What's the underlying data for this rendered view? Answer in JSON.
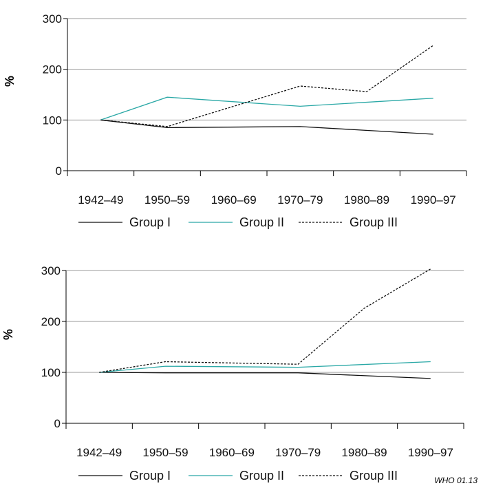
{
  "chart_data": [
    {
      "type": "line",
      "ylabel": "%",
      "ylim": [
        0,
        300
      ],
      "yticks": [
        0,
        100,
        200,
        300
      ],
      "grid": true,
      "legend": "bottom",
      "categories": [
        "1942–49",
        "1950–59",
        "1960–69",
        "1970–79",
        "1980–89",
        "1990–97"
      ],
      "series": [
        {
          "name": "Group I",
          "color": "#111111",
          "style": "solid",
          "x": [
            0.5,
            1.5,
            3.5,
            5.5
          ],
          "values": [
            100,
            85,
            87,
            72
          ]
        },
        {
          "name": "Group II",
          "color": "#2aa8a6",
          "style": "solid",
          "x": [
            0.5,
            1.5,
            3.5,
            5.5
          ],
          "values": [
            100,
            145,
            127,
            143
          ]
        },
        {
          "name": "Group III",
          "color": "#111111",
          "style": "dotted",
          "x": [
            0.5,
            1.5,
            3.5,
            4.5,
            5.5
          ],
          "values": [
            100,
            87,
            167,
            156,
            247
          ]
        }
      ]
    },
    {
      "type": "line",
      "ylabel": "%",
      "ylim": [
        0,
        300
      ],
      "yticks": [
        0,
        100,
        200,
        300
      ],
      "grid": true,
      "legend": "bottom",
      "categories": [
        "1942–49",
        "1950–59",
        "1960–69",
        "1970–79",
        "1980–89",
        "1990–97"
      ],
      "series": [
        {
          "name": "Group I",
          "color": "#111111",
          "style": "solid",
          "x": [
            0.5,
            1.5,
            3.5,
            5.5
          ],
          "values": [
            100,
            99,
            99,
            88
          ]
        },
        {
          "name": "Group II",
          "color": "#2aa8a6",
          "style": "solid",
          "x": [
            0.5,
            1.5,
            3.5,
            5.5
          ],
          "values": [
            100,
            112,
            110,
            121
          ]
        },
        {
          "name": "Group III",
          "color": "#111111",
          "style": "dotted",
          "x": [
            0.5,
            1.5,
            3.5,
            4.5,
            5.5
          ],
          "values": [
            100,
            121,
            116,
            226,
            303
          ]
        }
      ]
    }
  ],
  "credit": "WHO 01.13"
}
